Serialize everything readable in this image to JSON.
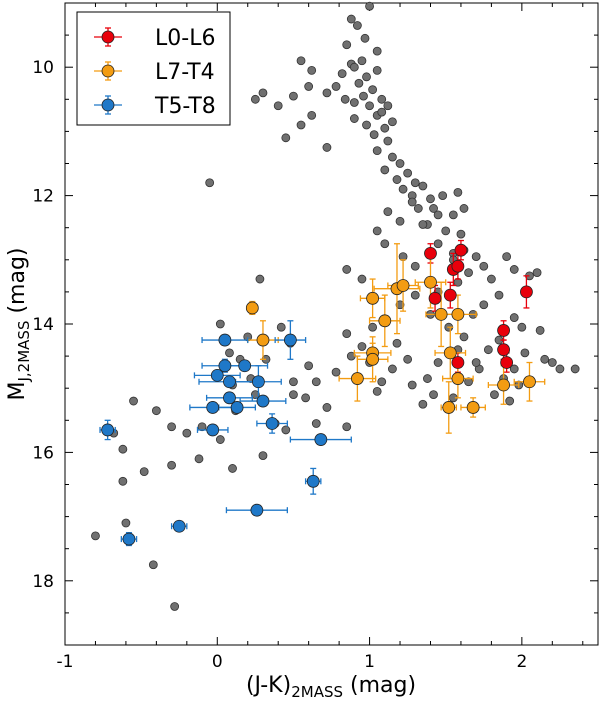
{
  "chart_data": {
    "type": "scatter",
    "xlabel": "(J-K)",
    "xlabel_sub": "2MASS",
    "xlabel_unit": " (mag)",
    "ylabel": "M",
    "ylabel_sub": "J,2MASS",
    "ylabel_unit": " (mag)",
    "xlim": [
      -1.0,
      2.5
    ],
    "ylim": [
      19.0,
      9.0
    ],
    "y_inverted": true,
    "xticks": [
      -1,
      0,
      1,
      2
    ],
    "xtick_labels": [
      "-1",
      "0",
      "1",
      "2"
    ],
    "yticks": [
      10,
      12,
      14,
      16,
      18
    ],
    "ytick_labels": [
      "10",
      "12",
      "14",
      "16",
      "18"
    ],
    "legend": {
      "position": "top-left",
      "entries": [
        {
          "label": "L0-L6",
          "color": "#e8000b"
        },
        {
          "label": "L7-T4",
          "color": "#f39c12"
        },
        {
          "label": "T5-T8",
          "color": "#1f78c8"
        }
      ]
    },
    "background_color": "#707070",
    "background_points": [
      [
        1.0,
        9.05
      ],
      [
        0.88,
        9.25
      ],
      [
        0.92,
        9.35
      ],
      [
        0.97,
        9.55
      ],
      [
        0.85,
        9.65
      ],
      [
        0.95,
        9.9
      ],
      [
        0.88,
        9.95
      ],
      [
        0.82,
        10.1
      ],
      [
        0.9,
        10.0
      ],
      [
        0.98,
        10.15
      ],
      [
        1.05,
        10.05
      ],
      [
        0.93,
        10.25
      ],
      [
        0.96,
        10.45
      ],
      [
        1.02,
        10.35
      ],
      [
        0.9,
        10.55
      ],
      [
        1.0,
        10.6
      ],
      [
        1.05,
        10.75
      ],
      [
        0.98,
        10.9
      ],
      [
        1.08,
        10.7
      ],
      [
        1.1,
        10.95
      ],
      [
        1.15,
        10.85
      ],
      [
        1.03,
        11.05
      ],
      [
        1.12,
        11.15
      ],
      [
        1.05,
        11.3
      ],
      [
        1.15,
        11.4
      ],
      [
        1.2,
        11.5
      ],
      [
        1.1,
        11.6
      ],
      [
        1.25,
        11.65
      ],
      [
        1.18,
        11.75
      ],
      [
        1.3,
        11.8
      ],
      [
        1.22,
        11.9
      ],
      [
        1.35,
        11.85
      ],
      [
        1.28,
        12.0
      ],
      [
        1.4,
        12.05
      ],
      [
        1.32,
        12.2
      ],
      [
        1.45,
        12.3
      ],
      [
        1.38,
        12.45
      ],
      [
        1.5,
        12.55
      ],
      [
        1.55,
        12.3
      ],
      [
        1.6,
        12.6
      ],
      [
        1.45,
        12.75
      ],
      [
        1.62,
        12.85
      ],
      [
        1.55,
        12.9
      ],
      [
        1.7,
        12.95
      ],
      [
        1.75,
        13.1
      ],
      [
        1.65,
        13.2
      ],
      [
        1.58,
        13.35
      ],
      [
        1.8,
        13.3
      ],
      [
        1.9,
        12.95
      ],
      [
        1.95,
        13.15
      ],
      [
        2.05,
        13.25
      ],
      [
        2.1,
        13.2
      ],
      [
        1.85,
        13.55
      ],
      [
        1.75,
        13.7
      ],
      [
        1.68,
        13.85
      ],
      [
        1.95,
        13.9
      ],
      [
        2.0,
        14.05
      ],
      [
        2.12,
        14.1
      ],
      [
        1.85,
        14.25
      ],
      [
        1.78,
        14.4
      ],
      [
        2.02,
        14.45
      ],
      [
        2.15,
        14.55
      ],
      [
        2.2,
        14.6
      ],
      [
        2.25,
        14.7
      ],
      [
        2.35,
        14.7
      ],
      [
        1.95,
        14.7
      ],
      [
        1.72,
        14.7
      ],
      [
        1.65,
        14.9
      ],
      [
        1.88,
        14.85
      ],
      [
        1.98,
        14.95
      ],
      [
        1.82,
        15.1
      ],
      [
        1.92,
        15.2
      ],
      [
        1.45,
        14.6
      ],
      [
        1.38,
        14.85
      ],
      [
        1.42,
        15.1
      ],
      [
        1.55,
        15.15
      ],
      [
        1.35,
        15.25
      ],
      [
        1.25,
        14.55
      ],
      [
        1.28,
        14.95
      ],
      [
        1.15,
        14.7
      ],
      [
        1.08,
        14.9
      ],
      [
        1.05,
        15.05
      ],
      [
        1.0,
        14.6
      ],
      [
        0.85,
        14.15
      ],
      [
        0.95,
        14.35
      ],
      [
        1.2,
        13.7
      ],
      [
        1.18,
        14.3
      ],
      [
        1.3,
        13.55
      ],
      [
        1.45,
        13.5
      ],
      [
        1.55,
        13.0
      ],
      [
        1.3,
        13.1
      ],
      [
        1.22,
        12.95
      ],
      [
        1.1,
        12.75
      ],
      [
        1.05,
        12.55
      ],
      [
        1.35,
        12.45
      ],
      [
        1.12,
        12.25
      ],
      [
        1.28,
        12.1
      ],
      [
        1.42,
        12.2
      ],
      [
        1.62,
        12.2
      ],
      [
        1.48,
        12.0
      ],
      [
        1.58,
        11.95
      ],
      [
        1.2,
        12.4
      ],
      [
        0.95,
        13.3
      ],
      [
        0.85,
        13.15
      ],
      [
        1.02,
        14.05
      ],
      [
        1.52,
        14.05
      ],
      [
        1.62,
        14.2
      ],
      [
        1.7,
        14.6
      ],
      [
        1.58,
        14.4
      ],
      [
        1.4,
        13.85
      ],
      [
        0.9,
        10.8
      ],
      [
        0.84,
        10.5
      ],
      [
        0.78,
        10.3
      ],
      [
        0.72,
        10.4
      ],
      [
        0.6,
        10.3
      ],
      [
        0.5,
        10.45
      ],
      [
        0.4,
        10.6
      ],
      [
        0.62,
        10.75
      ],
      [
        0.55,
        10.9
      ],
      [
        0.45,
        11.1
      ],
      [
        0.72,
        11.25
      ],
      [
        0.3,
        10.4
      ],
      [
        0.25,
        10.5
      ],
      [
        0.62,
        10.05
      ],
      [
        0.55,
        9.9
      ],
      [
        1.05,
        9.75
      ],
      [
        1.08,
        10.5
      ],
      [
        1.12,
        10.6
      ],
      [
        -0.05,
        11.8
      ],
      [
        0.02,
        14.0
      ],
      [
        0.08,
        14.45
      ],
      [
        0.15,
        14.55
      ],
      [
        0.22,
        14.85
      ],
      [
        0.28,
        13.3
      ],
      [
        0.1,
        14.95
      ],
      [
        -0.1,
        15.6
      ],
      [
        -0.2,
        15.7
      ],
      [
        -0.3,
        15.6
      ],
      [
        -0.4,
        15.35
      ],
      [
        -0.48,
        16.3
      ],
      [
        -0.55,
        15.2
      ],
      [
        -0.62,
        16.45
      ],
      [
        -0.68,
        15.7
      ],
      [
        -0.62,
        15.95
      ],
      [
        -0.8,
        17.3
      ],
      [
        -0.6,
        17.1
      ],
      [
        -0.42,
        17.75
      ],
      [
        -0.28,
        18.4
      ],
      [
        -0.3,
        16.2
      ],
      [
        0.02,
        15.8
      ],
      [
        0.12,
        15.35
      ],
      [
        0.38,
        15.55
      ],
      [
        0.5,
        14.9
      ],
      [
        0.58,
        15.15
      ],
      [
        0.65,
        15.55
      ],
      [
        0.25,
        15.1
      ],
      [
        0.32,
        14.55
      ],
      [
        0.45,
        15.65
      ],
      [
        0.1,
        16.25
      ],
      [
        -0.12,
        16.1
      ],
      [
        0.48,
        14.3
      ],
      [
        0.42,
        14.05
      ],
      [
        0.2,
        14.2
      ],
      [
        0.88,
        14.5
      ],
      [
        0.78,
        14.75
      ],
      [
        0.65,
        14.9
      ],
      [
        0.72,
        15.3
      ],
      [
        0.85,
        15.6
      ],
      [
        0.5,
        15.1
      ],
      [
        0.6,
        14.65
      ],
      [
        0.3,
        16.05
      ]
    ],
    "series": [
      {
        "name": "L0-L6",
        "color": "#e8000b",
        "points": [
          {
            "x": 1.4,
            "y": 12.9,
            "xerr": 0,
            "yerr": 0.15
          },
          {
            "x": 1.55,
            "y": 13.15,
            "xerr": 0,
            "yerr": 0.25
          },
          {
            "x": 1.58,
            "y": 13.1,
            "xerr": 0,
            "yerr": 0.2
          },
          {
            "x": 1.6,
            "y": 12.85,
            "xerr": 0,
            "yerr": 0.15
          },
          {
            "x": 1.43,
            "y": 13.6,
            "xerr": 0,
            "yerr": 0.2
          },
          {
            "x": 1.53,
            "y": 13.55,
            "xerr": 0,
            "yerr": 0.2
          },
          {
            "x": 1.58,
            "y": 14.6,
            "xerr": 0,
            "yerr": 0.15
          },
          {
            "x": 1.88,
            "y": 14.1,
            "xerr": 0,
            "yerr": 0.15
          },
          {
            "x": 1.88,
            "y": 14.4,
            "xerr": 0,
            "yerr": 0.15
          },
          {
            "x": 1.9,
            "y": 14.6,
            "xerr": 0,
            "yerr": 0.15
          },
          {
            "x": 2.03,
            "y": 13.5,
            "xerr": 0,
            "yerr": 0.25
          }
        ]
      },
      {
        "name": "L7-T4",
        "color": "#f39c12",
        "points": [
          {
            "x": 0.23,
            "y": 13.75,
            "xerr": 0,
            "yerr": 0.1
          },
          {
            "x": 0.3,
            "y": 14.25,
            "xerr": 0.1,
            "yerr": 0.3
          },
          {
            "x": 1.02,
            "y": 13.6,
            "xerr": 0.08,
            "yerr": 0.3
          },
          {
            "x": 1.18,
            "y": 13.45,
            "xerr": 0.15,
            "yerr": 0.7
          },
          {
            "x": 1.22,
            "y": 13.4,
            "xerr": 0.1,
            "yerr": 0.4
          },
          {
            "x": 1.1,
            "y": 13.95,
            "xerr": 0.1,
            "yerr": 0.4
          },
          {
            "x": 1.02,
            "y": 14.45,
            "xerr": 0.12,
            "yerr": 0.15
          },
          {
            "x": 1.02,
            "y": 14.55,
            "xerr": 0.1,
            "yerr": 0.35
          },
          {
            "x": 0.92,
            "y": 14.85,
            "xerr": 0.12,
            "yerr": 0.35
          },
          {
            "x": 1.4,
            "y": 13.35,
            "xerr": 0.1,
            "yerr": 0.4
          },
          {
            "x": 1.47,
            "y": 13.85,
            "xerr": 0.1,
            "yerr": 0.5
          },
          {
            "x": 1.58,
            "y": 13.85,
            "xerr": 0.12,
            "yerr": 0.3
          },
          {
            "x": 1.53,
            "y": 14.45,
            "xerr": 0.1,
            "yerr": 0.4
          },
          {
            "x": 1.58,
            "y": 14.85,
            "xerr": 0.1,
            "yerr": 0.3
          },
          {
            "x": 1.52,
            "y": 15.3,
            "xerr": 0.05,
            "yerr": 0.4
          },
          {
            "x": 1.68,
            "y": 15.3,
            "xerr": 0.08,
            "yerr": 0.15
          },
          {
            "x": 1.88,
            "y": 14.95,
            "xerr": 0.1,
            "yerr": 0.3
          },
          {
            "x": 2.05,
            "y": 14.9,
            "xerr": 0.1,
            "yerr": 0.3
          }
        ]
      },
      {
        "name": "T5-T8",
        "color": "#1f78c8",
        "points": [
          {
            "x": 0.05,
            "y": 14.25,
            "xerr": 0.15,
            "yerr": 0
          },
          {
            "x": 0.48,
            "y": 14.25,
            "xerr": 0.1,
            "yerr": 0.3
          },
          {
            "x": 0.05,
            "y": 14.65,
            "xerr": 0.15,
            "yerr": 0.1
          },
          {
            "x": 0.0,
            "y": 14.8,
            "xerr": 0.15,
            "yerr": 0
          },
          {
            "x": 0.18,
            "y": 14.65,
            "xerr": 0.15,
            "yerr": 0
          },
          {
            "x": 0.08,
            "y": 14.9,
            "xerr": 0.2,
            "yerr": 0
          },
          {
            "x": 0.27,
            "y": 14.9,
            "xerr": 0.15,
            "yerr": 0.25
          },
          {
            "x": 0.08,
            "y": 15.15,
            "xerr": 0.15,
            "yerr": 0
          },
          {
            "x": -0.03,
            "y": 15.3,
            "xerr": 0.15,
            "yerr": 0
          },
          {
            "x": 0.13,
            "y": 15.3,
            "xerr": 0.12,
            "yerr": 0
          },
          {
            "x": 0.3,
            "y": 15.2,
            "xerr": 0.15,
            "yerr": 0
          },
          {
            "x": 0.36,
            "y": 15.55,
            "xerr": 0.1,
            "yerr": 0.15
          },
          {
            "x": -0.03,
            "y": 15.65,
            "xerr": 0.1,
            "yerr": 0
          },
          {
            "x": 0.68,
            "y": 15.8,
            "xerr": 0.2,
            "yerr": 0
          },
          {
            "x": 0.63,
            "y": 16.45,
            "xerr": 0.05,
            "yerr": 0.2
          },
          {
            "x": 0.26,
            "y": 16.9,
            "xerr": 0.2,
            "yerr": 0
          },
          {
            "x": -0.25,
            "y": 17.15,
            "xerr": 0.05,
            "yerr": 0
          },
          {
            "x": -0.72,
            "y": 15.65,
            "xerr": 0.05,
            "yerr": 0.15
          },
          {
            "x": -0.58,
            "y": 17.35,
            "xerr": 0.05,
            "yerr": 0.1
          }
        ]
      }
    ]
  }
}
